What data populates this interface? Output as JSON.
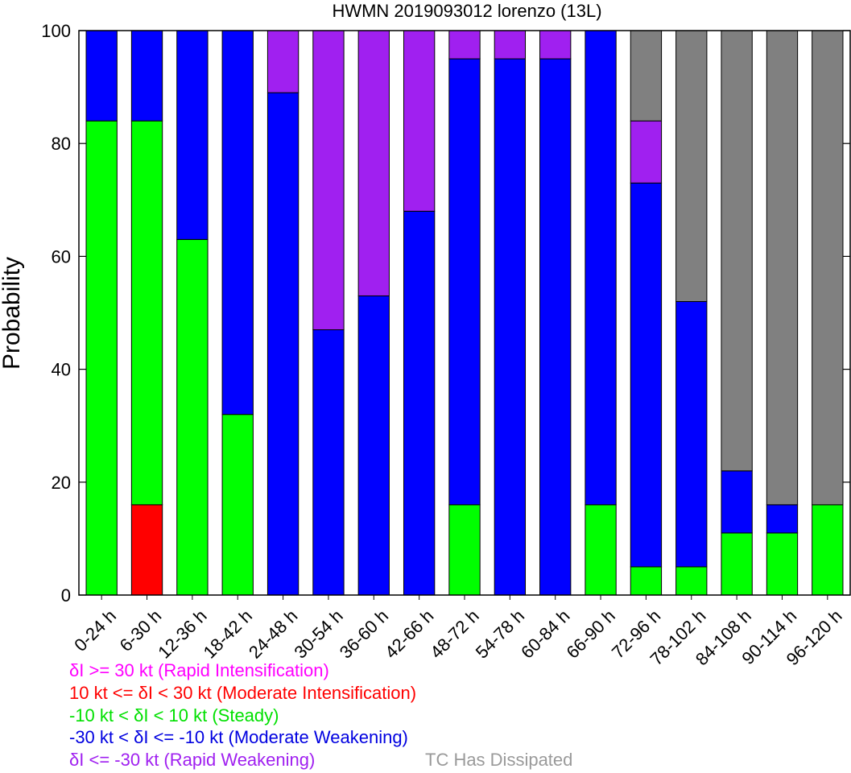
{
  "chart_data": {
    "type": "bar",
    "stacked": true,
    "title": "HWMN 2019093012 lorenzo (13L)",
    "xlabel": "",
    "ylabel": "Probability",
    "ylim": [
      0,
      100
    ],
    "yticks": [
      0,
      20,
      40,
      60,
      80,
      100
    ],
    "grid": false,
    "categories": [
      "0-24 h",
      "6-30 h",
      "12-36 h",
      "18-42 h",
      "24-48 h",
      "30-54 h",
      "36-60 h",
      "42-66 h",
      "48-72 h",
      "54-78 h",
      "60-84 h",
      "66-90 h",
      "72-96 h",
      "78-102 h",
      "84-108 h",
      "90-114 h",
      "96-120 h"
    ],
    "series": [
      {
        "name": "δI >= 30 kt (Rapid Intensification)",
        "color": "#ff00ff",
        "values": [
          0,
          0,
          0,
          0,
          0,
          0,
          0,
          0,
          0,
          0,
          0,
          0,
          0,
          0,
          0,
          0,
          0
        ]
      },
      {
        "name": "10 kt <= δI < 30 kt (Moderate Intensification)",
        "color": "#ff0000",
        "values": [
          0,
          16,
          0,
          0,
          0,
          0,
          0,
          0,
          0,
          0,
          0,
          0,
          0,
          0,
          0,
          0,
          0
        ]
      },
      {
        "name": "-10 kt < δI < 10 kt (Steady)",
        "color": "#00ff00",
        "values": [
          84,
          68,
          63,
          32,
          0,
          0,
          0,
          0,
          16,
          0,
          0,
          16,
          5,
          5,
          11,
          11,
          16
        ]
      },
      {
        "name": "-30 kt < δI <= -10 kt (Moderate Weakening)",
        "color": "#0000ff",
        "values": [
          16,
          16,
          37,
          68,
          89,
          47,
          53,
          68,
          79,
          95,
          95,
          84,
          68,
          47,
          11,
          5,
          0
        ]
      },
      {
        "name": "δI <= -30 kt (Rapid Weakening)",
        "color": "#a020f0",
        "values": [
          0,
          0,
          0,
          0,
          11,
          53,
          47,
          32,
          5,
          5,
          5,
          0,
          11,
          0,
          0,
          0,
          0
        ]
      },
      {
        "name": "TC Has Dissipated",
        "color": "#808080",
        "values": [
          0,
          0,
          0,
          0,
          0,
          0,
          0,
          0,
          0,
          0,
          0,
          0,
          16,
          48,
          78,
          84,
          84
        ]
      }
    ]
  }
}
